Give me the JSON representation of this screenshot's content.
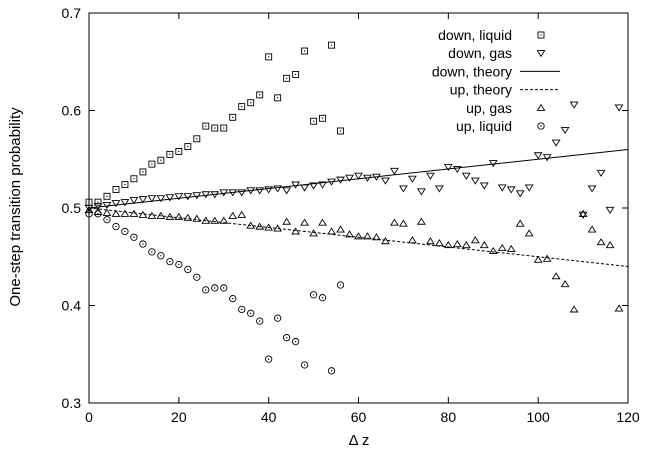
{
  "chart_data": {
    "type": "scatter",
    "title": "",
    "xlabel": "Δ z",
    "ylabel": "One-step transition probability",
    "xlim": [
      0,
      120
    ],
    "ylim": [
      0.3,
      0.7
    ],
    "xticks": [
      0,
      20,
      40,
      60,
      80,
      100,
      120
    ],
    "yticks": [
      0.3,
      0.4,
      0.5,
      0.6,
      0.7
    ],
    "xtick_labels": [
      "0",
      "20",
      "40",
      "60",
      "80",
      "100",
      "120"
    ],
    "ytick_labels": [
      "0.3",
      "0.4",
      "0.5",
      "0.6",
      "0.7"
    ],
    "grid": false,
    "legend_position": "top-right",
    "series": [
      {
        "name": "down, liquid",
        "marker": "square-dot",
        "points": [
          [
            0,
            0.506
          ],
          [
            2,
            0.506
          ],
          [
            4,
            0.512
          ],
          [
            6,
            0.519
          ],
          [
            8,
            0.524
          ],
          [
            10,
            0.53
          ],
          [
            12,
            0.537
          ],
          [
            14,
            0.545
          ],
          [
            16,
            0.549
          ],
          [
            18,
            0.555
          ],
          [
            20,
            0.558
          ],
          [
            22,
            0.563
          ],
          [
            24,
            0.571
          ],
          [
            26,
            0.584
          ],
          [
            28,
            0.582
          ],
          [
            30,
            0.582
          ],
          [
            32,
            0.593
          ],
          [
            34,
            0.604
          ],
          [
            36,
            0.608
          ],
          [
            38,
            0.616
          ],
          [
            40,
            0.655
          ],
          [
            42,
            0.613
          ],
          [
            44,
            0.633
          ],
          [
            46,
            0.637
          ],
          [
            48,
            0.661
          ],
          [
            50,
            0.589
          ],
          [
            52,
            0.592
          ],
          [
            54,
            0.667
          ],
          [
            56,
            0.579
          ]
        ]
      },
      {
        "name": "down, gas",
        "marker": "triangle-down",
        "points": [
          [
            0,
            0.5
          ],
          [
            2,
            0.502
          ],
          [
            4,
            0.503
          ],
          [
            6,
            0.505
          ],
          [
            8,
            0.506
          ],
          [
            10,
            0.508
          ],
          [
            12,
            0.509
          ],
          [
            14,
            0.51
          ],
          [
            16,
            0.51
          ],
          [
            18,
            0.511
          ],
          [
            20,
            0.512
          ],
          [
            22,
            0.512
          ],
          [
            24,
            0.513
          ],
          [
            26,
            0.514
          ],
          [
            28,
            0.514
          ],
          [
            30,
            0.516
          ],
          [
            32,
            0.516
          ],
          [
            34,
            0.516
          ],
          [
            36,
            0.518
          ],
          [
            38,
            0.518
          ],
          [
            40,
            0.519
          ],
          [
            42,
            0.52
          ],
          [
            44,
            0.518
          ],
          [
            46,
            0.524
          ],
          [
            48,
            0.521
          ],
          [
            50,
            0.523
          ],
          [
            52,
            0.524
          ],
          [
            54,
            0.527
          ],
          [
            56,
            0.529
          ],
          [
            58,
            0.531
          ],
          [
            60,
            0.533
          ],
          [
            62,
            0.531
          ],
          [
            64,
            0.532
          ],
          [
            66,
            0.528
          ],
          [
            68,
            0.538
          ],
          [
            70,
            0.52
          ],
          [
            72,
            0.53
          ],
          [
            74,
            0.517
          ],
          [
            76,
            0.533
          ],
          [
            78,
            0.52
          ],
          [
            80,
            0.542
          ],
          [
            82,
            0.54
          ],
          [
            84,
            0.533
          ],
          [
            86,
            0.528
          ],
          [
            88,
            0.523
          ],
          [
            90,
            0.546
          ],
          [
            92,
            0.521
          ],
          [
            94,
            0.519
          ],
          [
            96,
            0.515
          ],
          [
            98,
            0.521
          ],
          [
            100,
            0.554
          ],
          [
            102,
            0.552
          ],
          [
            104,
            0.567
          ],
          [
            106,
            0.58
          ],
          [
            108,
            0.606
          ],
          [
            110,
            0.493
          ],
          [
            112,
            0.52
          ],
          [
            114,
            0.536
          ],
          [
            116,
            0.498
          ],
          [
            118,
            0.603
          ]
        ]
      },
      {
        "name": "down, theory",
        "style": "solid",
        "points": [
          [
            0,
            0.5
          ],
          [
            120,
            0.56
          ]
        ]
      },
      {
        "name": "up, theory",
        "style": "dashed",
        "points": [
          [
            0,
            0.5
          ],
          [
            120,
            0.44
          ]
        ]
      },
      {
        "name": "up, gas",
        "marker": "triangle-up",
        "points": [
          [
            0,
            0.498
          ],
          [
            2,
            0.496
          ],
          [
            4,
            0.495
          ],
          [
            6,
            0.494
          ],
          [
            8,
            0.494
          ],
          [
            10,
            0.494
          ],
          [
            12,
            0.493
          ],
          [
            14,
            0.492
          ],
          [
            16,
            0.492
          ],
          [
            18,
            0.491
          ],
          [
            20,
            0.491
          ],
          [
            22,
            0.49
          ],
          [
            24,
            0.489
          ],
          [
            26,
            0.487
          ],
          [
            28,
            0.487
          ],
          [
            30,
            0.487
          ],
          [
            32,
            0.492
          ],
          [
            34,
            0.493
          ],
          [
            36,
            0.482
          ],
          [
            38,
            0.481
          ],
          [
            40,
            0.48
          ],
          [
            42,
            0.479
          ],
          [
            44,
            0.486
          ],
          [
            46,
            0.476
          ],
          [
            48,
            0.485
          ],
          [
            50,
            0.474
          ],
          [
            52,
            0.485
          ],
          [
            54,
            0.476
          ],
          [
            56,
            0.478
          ],
          [
            58,
            0.473
          ],
          [
            60,
            0.471
          ],
          [
            62,
            0.471
          ],
          [
            64,
            0.47
          ],
          [
            66,
            0.466
          ],
          [
            68,
            0.485
          ],
          [
            70,
            0.484
          ],
          [
            72,
            0.467
          ],
          [
            74,
            0.486
          ],
          [
            76,
            0.466
          ],
          [
            78,
            0.464
          ],
          [
            80,
            0.462
          ],
          [
            82,
            0.463
          ],
          [
            84,
            0.462
          ],
          [
            86,
            0.467
          ],
          [
            88,
            0.462
          ],
          [
            90,
            0.456
          ],
          [
            92,
            0.459
          ],
          [
            94,
            0.458
          ],
          [
            96,
            0.484
          ],
          [
            98,
            0.474
          ],
          [
            100,
            0.447
          ],
          [
            102,
            0.448
          ],
          [
            104,
            0.43
          ],
          [
            106,
            0.422
          ],
          [
            108,
            0.396
          ],
          [
            110,
            0.494
          ],
          [
            112,
            0.478
          ],
          [
            114,
            0.465
          ],
          [
            116,
            0.462
          ],
          [
            118,
            0.397
          ]
        ]
      },
      {
        "name": "up, liquid",
        "marker": "circle-dot",
        "points": [
          [
            0,
            0.494
          ],
          [
            2,
            0.494
          ],
          [
            4,
            0.488
          ],
          [
            6,
            0.481
          ],
          [
            8,
            0.476
          ],
          [
            10,
            0.47
          ],
          [
            12,
            0.463
          ],
          [
            14,
            0.455
          ],
          [
            16,
            0.451
          ],
          [
            18,
            0.445
          ],
          [
            20,
            0.442
          ],
          [
            22,
            0.437
          ],
          [
            24,
            0.429
          ],
          [
            26,
            0.416
          ],
          [
            28,
            0.418
          ],
          [
            30,
            0.418
          ],
          [
            32,
            0.407
          ],
          [
            34,
            0.396
          ],
          [
            36,
            0.392
          ],
          [
            38,
            0.384
          ],
          [
            40,
            0.345
          ],
          [
            42,
            0.387
          ],
          [
            44,
            0.367
          ],
          [
            46,
            0.363
          ],
          [
            48,
            0.339
          ],
          [
            50,
            0.411
          ],
          [
            52,
            0.408
          ],
          [
            54,
            0.333
          ],
          [
            56,
            0.421
          ]
        ]
      }
    ]
  }
}
